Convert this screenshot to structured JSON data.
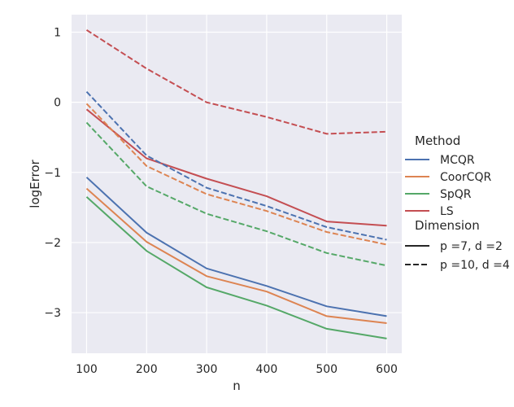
{
  "chart_data": {
    "type": "line",
    "title": "",
    "xlabel": "n",
    "ylabel": "logError",
    "x": [
      100,
      200,
      300,
      400,
      500,
      600
    ],
    "xlim": [
      75,
      625
    ],
    "ylim": [
      -3.58,
      1.25
    ],
    "xticks": [
      100,
      200,
      300,
      400,
      500,
      600
    ],
    "yticks": [
      1,
      0,
      -1,
      -2,
      -3
    ],
    "ytick_labels": [
      "1",
      "0",
      "−1",
      "−2",
      "−3"
    ],
    "grid": true,
    "series": [
      {
        "name": "MCQR",
        "dimension": "p =7, d =2",
        "color": "#4c72b0",
        "values": [
          -1.07,
          -1.86,
          -2.37,
          -2.62,
          -2.91,
          -3.05
        ]
      },
      {
        "name": "CoorCQR",
        "dimension": "p =7, d =2",
        "color": "#dd8452",
        "values": [
          -1.23,
          -1.99,
          -2.48,
          -2.7,
          -3.05,
          -3.15
        ]
      },
      {
        "name": "SpQR",
        "dimension": "p =7, d =2",
        "color": "#55a868",
        "values": [
          -1.35,
          -2.12,
          -2.64,
          -2.9,
          -3.23,
          -3.37
        ]
      },
      {
        "name": "LS",
        "dimension": "p =7, d =2",
        "color": "#c44e52",
        "values": [
          -0.1,
          -0.8,
          -1.09,
          -1.34,
          -1.7,
          -1.76
        ]
      },
      {
        "name": "MCQR",
        "dimension": "p =10, d =4",
        "color": "#4c72b0",
        "values": [
          0.15,
          -0.76,
          -1.22,
          -1.48,
          -1.78,
          -1.96
        ]
      },
      {
        "name": "CoorCQR",
        "dimension": "p =10, d =4",
        "color": "#dd8452",
        "values": [
          -0.02,
          -0.91,
          -1.31,
          -1.55,
          -1.85,
          -2.03
        ]
      },
      {
        "name": "SpQR",
        "dimension": "p =10, d =4",
        "color": "#55a868",
        "values": [
          -0.29,
          -1.2,
          -1.59,
          -1.84,
          -2.15,
          -2.33
        ]
      },
      {
        "name": "LS",
        "dimension": "p =10, d =4",
        "color": "#c44e52",
        "values": [
          1.03,
          0.48,
          0.0,
          -0.21,
          -0.45,
          -0.42
        ]
      }
    ],
    "legend": {
      "placement": "right",
      "method_title": "Method",
      "methods": [
        {
          "label": "MCQR",
          "color": "#4c72b0"
        },
        {
          "label": "CoorCQR",
          "color": "#dd8452"
        },
        {
          "label": "SpQR",
          "color": "#55a868"
        },
        {
          "label": "LS",
          "color": "#c44e52"
        }
      ],
      "dimension_title": "Dimension",
      "dimensions": [
        {
          "label": "p =7, d =2",
          "style": "solid"
        },
        {
          "label": "p =10, d =4",
          "style": "dashed"
        }
      ]
    },
    "colors": {
      "background": "#eaeaf2",
      "grid": "#ffffff",
      "text": "#262626"
    }
  }
}
